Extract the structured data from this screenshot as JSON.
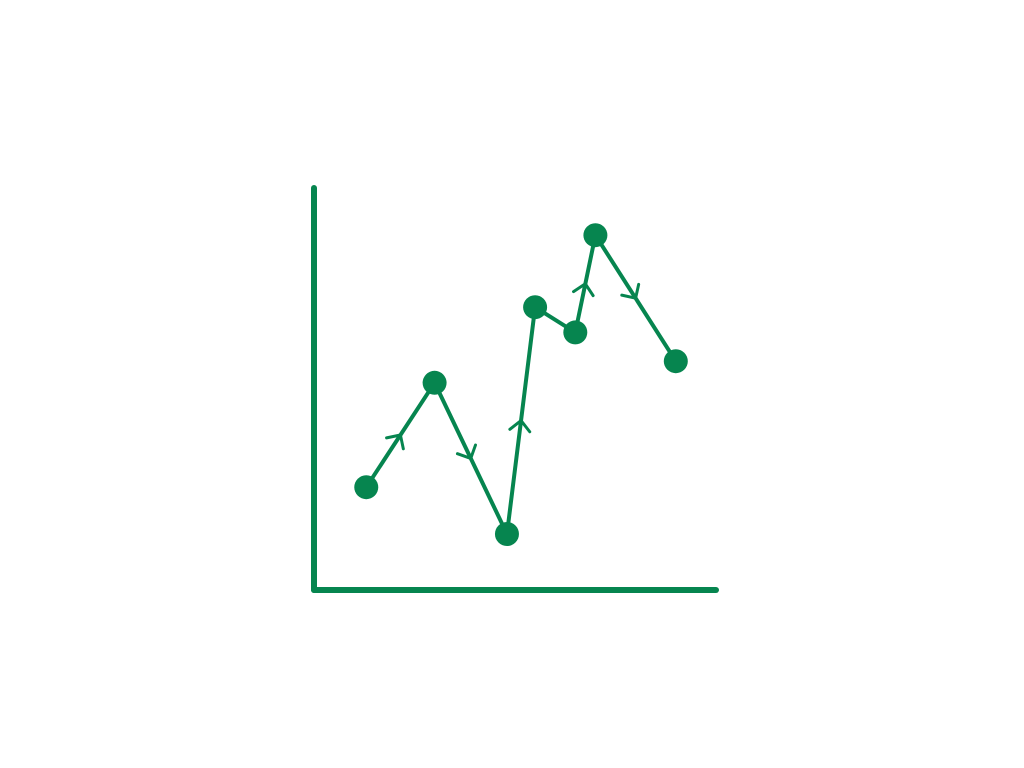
{
  "chart_data": {
    "type": "line",
    "title": "",
    "xlabel": "",
    "ylabel": "",
    "xlim": [
      0,
      10
    ],
    "ylim": [
      0,
      10
    ],
    "grid": false,
    "legend": "none",
    "color": "#06854f",
    "arrows_on_segments": [
      0,
      1,
      2,
      4,
      5
    ],
    "series": [
      {
        "x": [
          1.3,
          3.0,
          4.8,
          5.5,
          6.5,
          7.0,
          9.0
        ],
        "y": [
          2.3,
          5.2,
          1.0,
          7.3,
          6.6,
          9.3,
          5.8
        ]
      }
    ]
  }
}
